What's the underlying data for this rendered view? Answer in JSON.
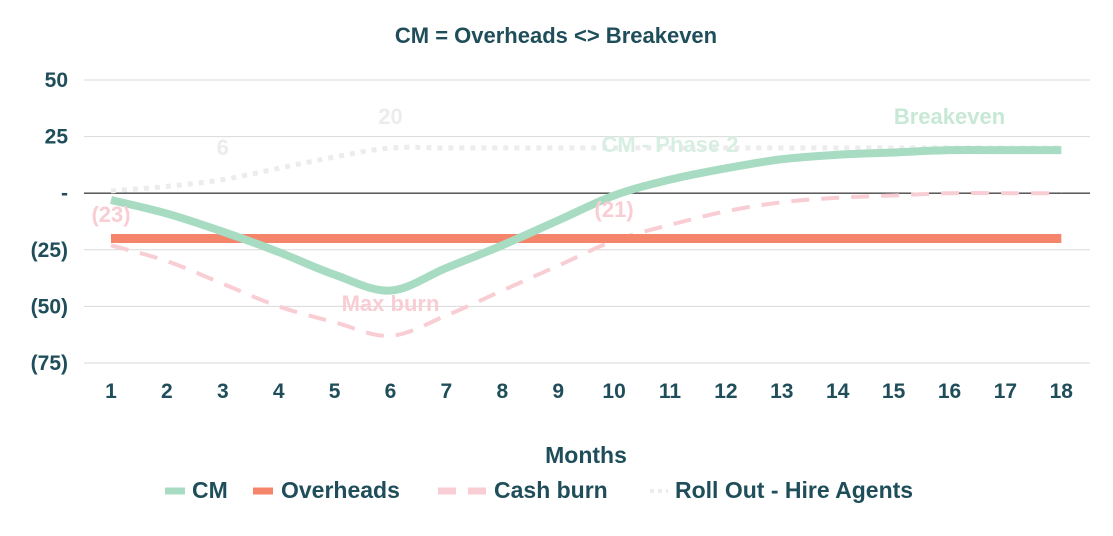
{
  "chart_data": {
    "type": "line",
    "title": "CM = Overheads <> Breakeven",
    "xlabel": "Months",
    "ylabel": "",
    "categories": [
      "1",
      "2",
      "3",
      "4",
      "5",
      "6",
      "7",
      "8",
      "9",
      "10",
      "11",
      "12",
      "13",
      "14",
      "15",
      "16",
      "17",
      "18"
    ],
    "y_ticks": [
      {
        "value": 50,
        "label": "50"
      },
      {
        "value": 25,
        "label": "25"
      },
      {
        "value": 0,
        "label": "-"
      },
      {
        "value": -25,
        "label": "(25)"
      },
      {
        "value": -50,
        "label": "(50)"
      },
      {
        "value": -75,
        "label": "(75)"
      }
    ],
    "ylim": [
      -75,
      50
    ],
    "grid": true,
    "legend_position": "bottom",
    "series": [
      {
        "name": "CM",
        "color": "#a8dcc2",
        "style": "solid",
        "values": [
          -3,
          -9,
          -17,
          -26,
          -36,
          -43,
          -33,
          -23,
          -12,
          -1,
          6,
          11,
          15,
          17,
          18,
          19,
          19,
          19
        ]
      },
      {
        "name": "Overheads",
        "color": "#f4846a",
        "style": "solid",
        "values": [
          -20,
          -20,
          -20,
          -20,
          -20,
          -20,
          -20,
          -20,
          -20,
          -20,
          -20,
          -20,
          -20,
          -20,
          -20,
          -20,
          -20,
          -20
        ]
      },
      {
        "name": "Cash burn",
        "color": "#f9cdd4",
        "style": "dashed",
        "values": [
          -23,
          -30,
          -40,
          -50,
          -57,
          -63,
          -54,
          -43,
          -32,
          -21,
          -14,
          -8,
          -4,
          -2,
          -1,
          0,
          0,
          0
        ]
      },
      {
        "name": "Roll Out - Hire Agents",
        "color": "#ececec",
        "style": "dotted",
        "values": [
          1,
          3,
          6,
          11,
          16,
          20,
          20,
          20,
          20,
          20,
          20,
          20,
          20,
          20,
          20,
          20,
          20,
          20
        ]
      }
    ],
    "annotations": [
      {
        "text": "(23)",
        "x": 1,
        "y": -23,
        "color": "#f9cdd4"
      },
      {
        "text": "Max burn",
        "x": 6,
        "y": -63,
        "color": "#f9cdd4"
      },
      {
        "text": "(21)",
        "x": 10,
        "y": -21,
        "color": "#f9cdd4"
      },
      {
        "text": "6",
        "x": 3,
        "y": 6,
        "color": "#ececec"
      },
      {
        "text": "20",
        "x": 6,
        "y": 20,
        "color": "#ececec"
      },
      {
        "text": "CM - Phase 2",
        "x": 11,
        "y": 6,
        "color": "#d7efe2"
      },
      {
        "text": "Breakeven",
        "x": 16,
        "y": 19,
        "color": "#c8e8d6"
      }
    ]
  }
}
